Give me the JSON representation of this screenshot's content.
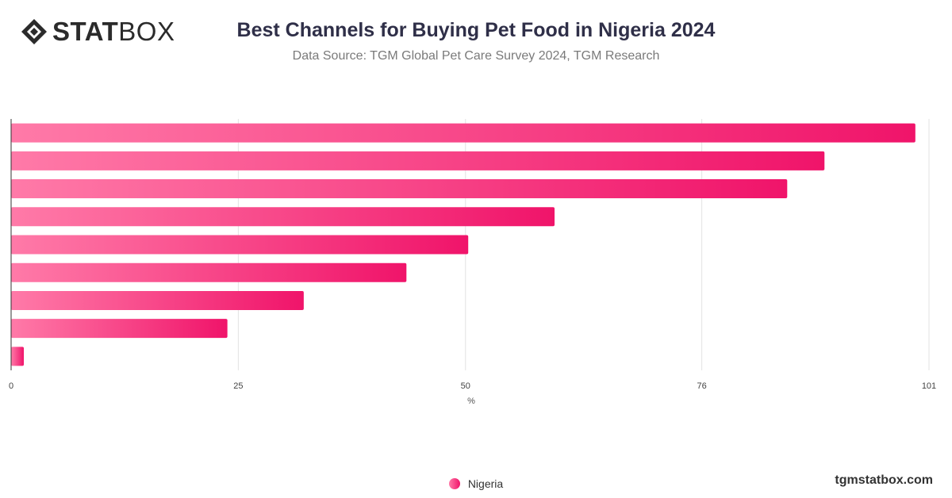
{
  "brand": {
    "logo_bold": "STAT",
    "logo_light": "BOX",
    "footer": "tgmstatbox.com"
  },
  "chart_data": {
    "type": "bar",
    "orientation": "horizontal",
    "title": "Best Channels for Buying Pet Food in Nigeria 2024",
    "subtitle": "Data Source: TGM Global Pet Care Survey 2024, TGM Research",
    "xlabel": "%",
    "xlim": [
      0,
      101
    ],
    "xticks": [
      "0",
      "25",
      "50",
      "76",
      "101"
    ],
    "categories": [
      "",
      "",
      "",
      "",
      "",
      "",
      "",
      "",
      ""
    ],
    "series": [
      {
        "name": "Nigeria",
        "values": [
          99.5,
          89.5,
          85.4,
          59.8,
          50.3,
          43.5,
          32.2,
          23.8,
          1.4
        ]
      }
    ],
    "grid": true,
    "legend": "bottom-center",
    "colors": {
      "bar_start": "#ff7aa8",
      "bar_end": "#f0146a",
      "grid": "#e3e3e3",
      "axis": "#333333"
    }
  }
}
